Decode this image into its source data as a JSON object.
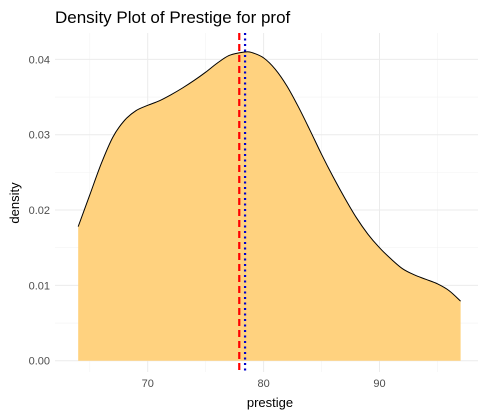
{
  "chart_data": {
    "type": "area",
    "title": "Density Plot of Prestige for prof",
    "xlabel": "prestige",
    "ylabel": "density",
    "xlim": [
      62,
      98.5
    ],
    "ylim": [
      -0.0015,
      0.0435
    ],
    "x_ticks": [
      70,
      80,
      90
    ],
    "y_ticks": [
      0.0,
      0.01,
      0.02,
      0.03,
      0.04
    ],
    "x_tick_labels": [
      "70",
      "80",
      "90"
    ],
    "y_tick_labels": [
      "0.00",
      "0.01",
      "0.02",
      "0.03",
      "0.04"
    ],
    "grid": true,
    "fill_color": "#FFD27F",
    "line_color": "#000000",
    "series": [
      {
        "x": [
          64.0,
          65.0,
          66.0,
          67.0,
          68.0,
          69.0,
          70.0,
          71.0,
          72.0,
          73.0,
          74.0,
          75.0,
          76.0,
          77.0,
          78.0,
          78.5,
          79.0,
          80.0,
          81.0,
          82.0,
          83.0,
          84.0,
          85.0,
          86.0,
          87.0,
          88.0,
          89.0,
          90.0,
          91.0,
          92.0,
          93.0,
          94.0,
          95.0,
          96.0,
          97.0
        ],
        "y": [
          0.0178,
          0.022,
          0.0262,
          0.0297,
          0.0319,
          0.0332,
          0.0339,
          0.0345,
          0.0353,
          0.0362,
          0.0372,
          0.0383,
          0.0395,
          0.0405,
          0.0409,
          0.041,
          0.0409,
          0.0402,
          0.0387,
          0.0365,
          0.0337,
          0.0306,
          0.0274,
          0.0244,
          0.0216,
          0.019,
          0.0168,
          0.015,
          0.0135,
          0.0122,
          0.0114,
          0.0108,
          0.0102,
          0.0093,
          0.0079
        ]
      }
    ],
    "reference_lines": [
      {
        "x": 77.9,
        "color": "#FF0000",
        "style": "dashed"
      },
      {
        "x": 78.4,
        "color": "#0000CD",
        "style": "dotted"
      }
    ]
  }
}
